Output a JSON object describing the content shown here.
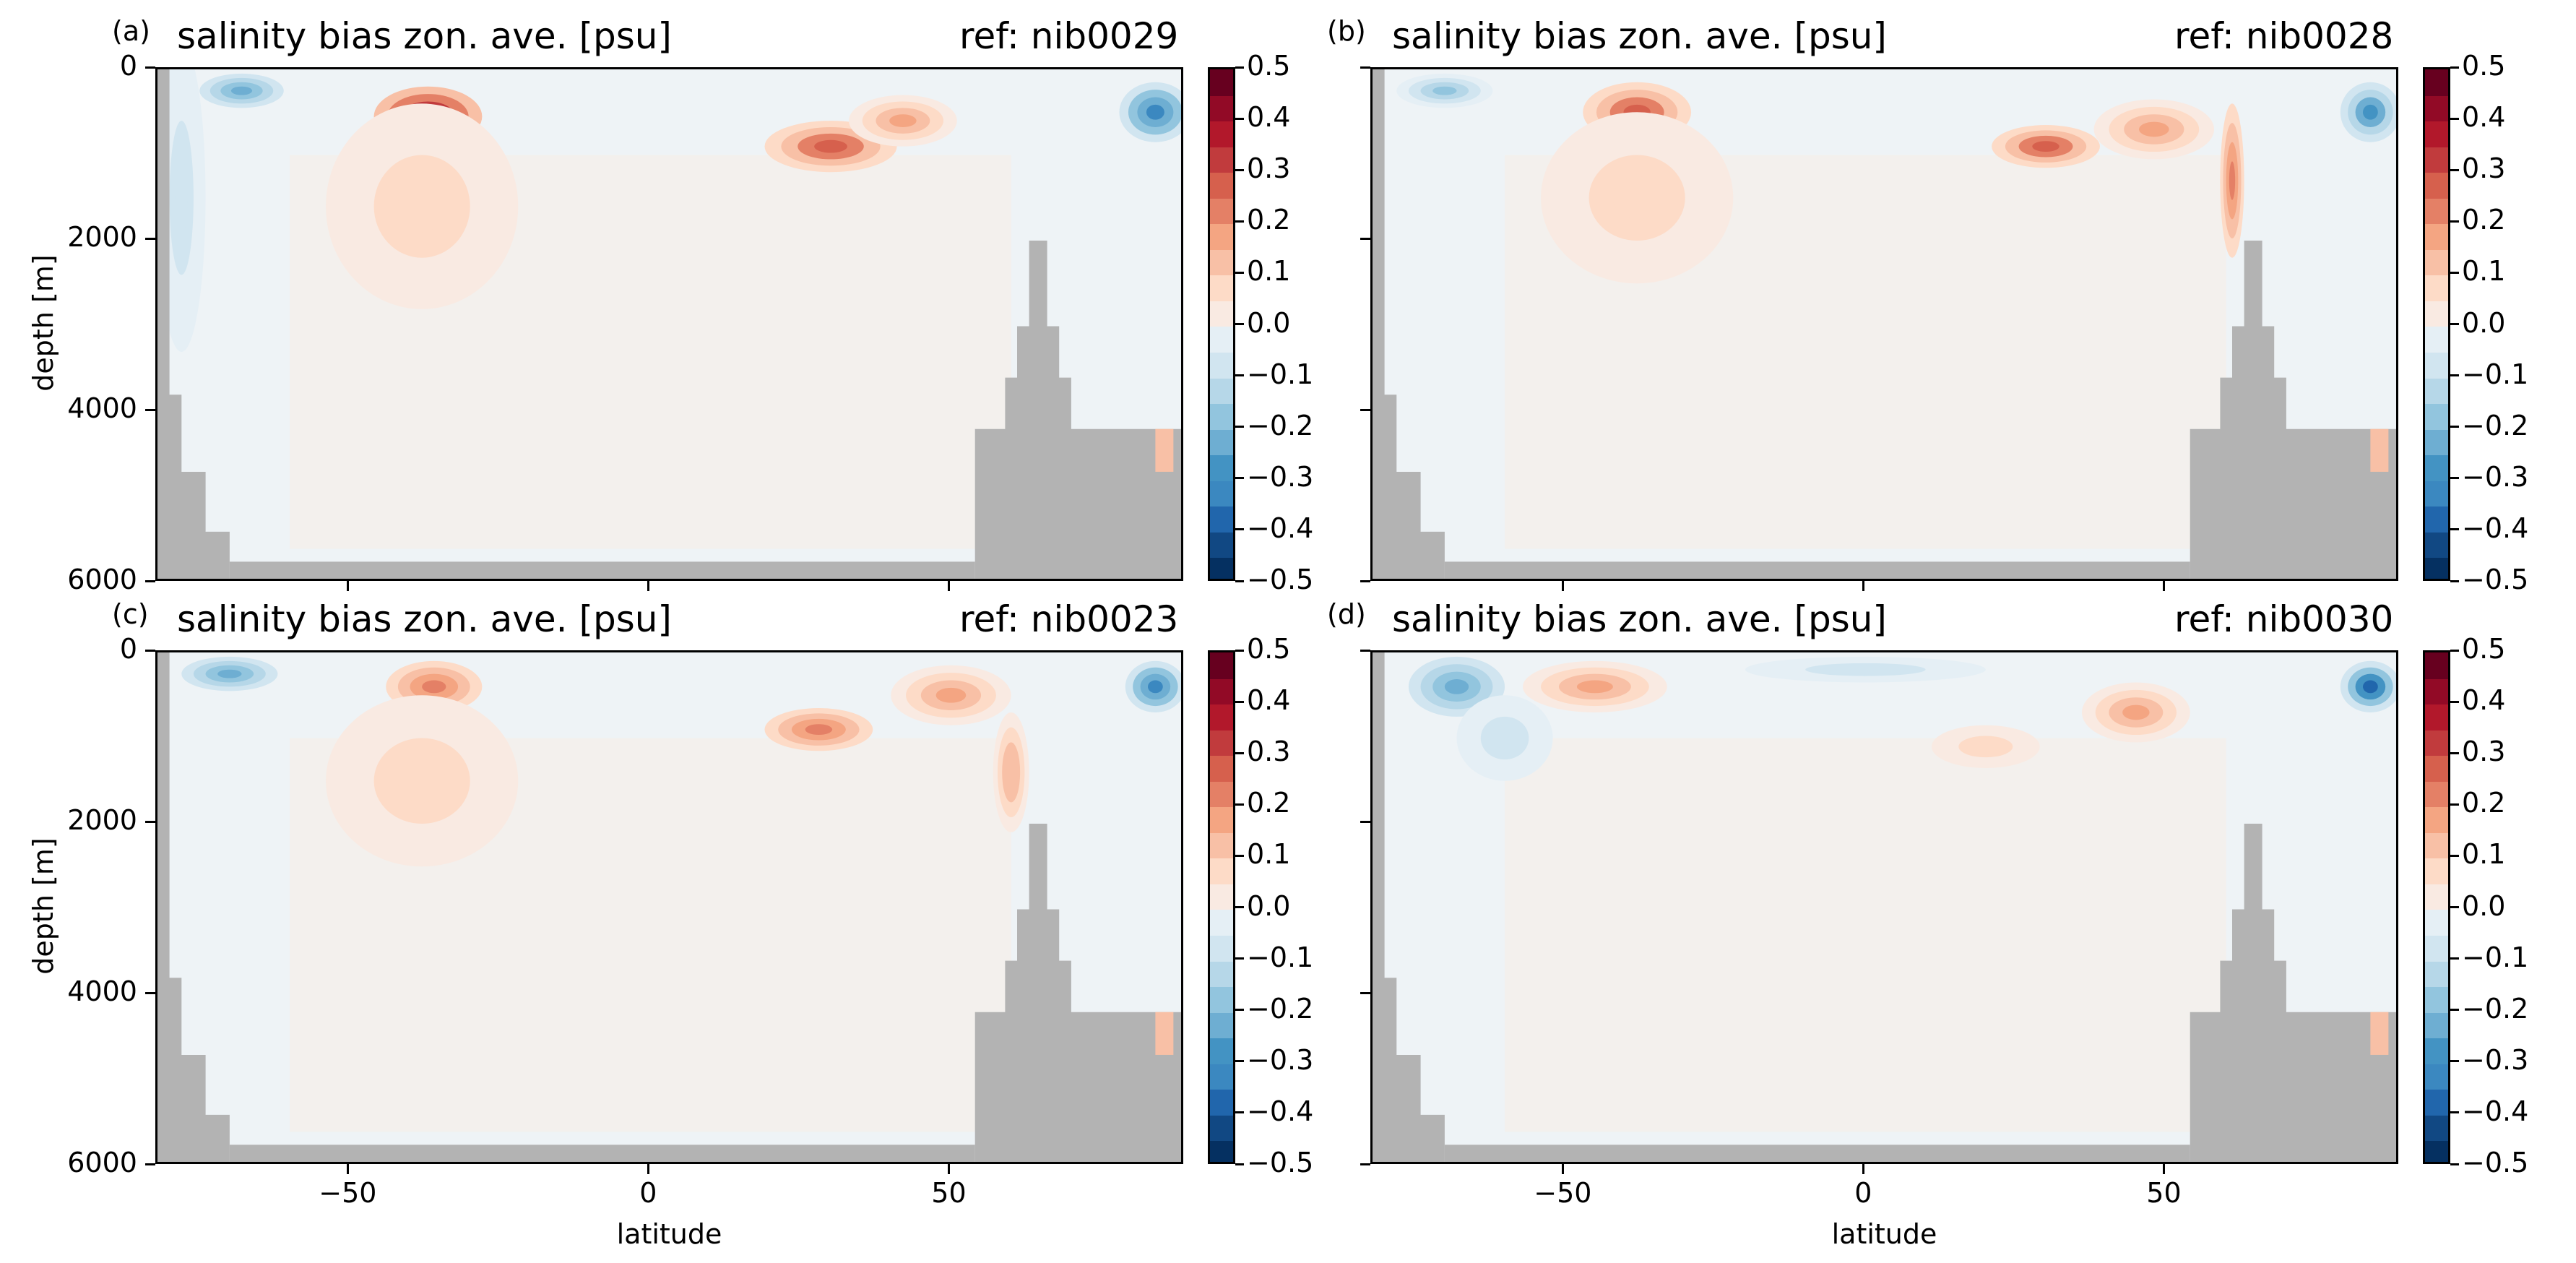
{
  "figure": {
    "xlabel": "latitude",
    "ylabel": "depth [m]"
  },
  "chart_data": [
    {
      "type": "heatmap",
      "panel_label": "(a)",
      "title": "salinity bias zon. ave. [psu]",
      "reference": "ref: nib0029",
      "xlim": [
        -82,
        89
      ],
      "ylim": [
        6000,
        0
      ],
      "x_ticks": [
        -50,
        0,
        50
      ],
      "y_ticks": [
        0,
        2000,
        4000,
        6000
      ],
      "colorbar": {
        "levels": [
          -0.5,
          -0.45,
          -0.4,
          -0.35,
          -0.3,
          -0.25,
          -0.2,
          -0.15,
          -0.1,
          -0.05,
          0,
          0.05,
          0.1,
          0.15,
          0.2,
          0.25,
          0.3,
          0.35,
          0.4,
          0.45,
          0.5
        ],
        "tick_labels": [
          "0.5",
          "0.4",
          "0.3",
          "0.2",
          "0.1",
          "0.0",
          "−0.1",
          "−0.2",
          "−0.3",
          "−0.4",
          "−0.5"
        ]
      },
      "features": [
        {
          "lat": -37,
          "depth": 550,
          "value": 0.45,
          "dlat": 9,
          "ddepth": 350
        },
        {
          "lat": 30,
          "depth": 900,
          "value": 0.3,
          "dlat": 11,
          "ddepth": 300
        },
        {
          "lat": 42,
          "depth": 600,
          "value": 0.2,
          "dlat": 9,
          "ddepth": 300
        },
        {
          "lat": -38,
          "depth": 1600,
          "value": 0.1,
          "dlat": 16,
          "ddepth": 1200
        },
        {
          "lat": -68,
          "depth": 250,
          "value": -0.25,
          "dlat": 7,
          "ddepth": 200
        },
        {
          "lat": 84,
          "depth": 500,
          "value": -0.35,
          "dlat": 6,
          "ddepth": 350
        },
        {
          "lat": -78,
          "depth": 1500,
          "value": -0.08,
          "dlat": 4,
          "ddepth": 1800
        }
      ]
    },
    {
      "type": "heatmap",
      "panel_label": "(b)",
      "title": "salinity bias zon. ave. [psu]",
      "reference": "ref: nib0028",
      "xlim": [
        -82,
        89
      ],
      "ylim": [
        6000,
        0
      ],
      "x_ticks": [
        -50,
        0,
        50
      ],
      "y_ticks": [
        0,
        2000,
        4000,
        6000
      ],
      "colorbar": {
        "levels": [
          -0.5,
          -0.45,
          -0.4,
          -0.35,
          -0.3,
          -0.25,
          -0.2,
          -0.15,
          -0.1,
          -0.05,
          0,
          0.05,
          0.1,
          0.15,
          0.2,
          0.25,
          0.3,
          0.35,
          0.4,
          0.45,
          0.5
        ],
        "tick_labels": [
          "0.5",
          "0.4",
          "0.3",
          "0.2",
          "0.1",
          "0.0",
          "−0.1",
          "−0.2",
          "−0.3",
          "−0.4",
          "−0.5"
        ]
      },
      "features": [
        {
          "lat": -38,
          "depth": 500,
          "value": 0.3,
          "dlat": 9,
          "ddepth": 350
        },
        {
          "lat": 30,
          "depth": 900,
          "value": 0.3,
          "dlat": 9,
          "ddepth": 250
        },
        {
          "lat": 48,
          "depth": 700,
          "value": 0.2,
          "dlat": 10,
          "ddepth": 350
        },
        {
          "lat": 61,
          "depth": 1300,
          "value": 0.25,
          "dlat": 2,
          "ddepth": 900
        },
        {
          "lat": -38,
          "depth": 1500,
          "value": 0.1,
          "dlat": 16,
          "ddepth": 1000
        },
        {
          "lat": -70,
          "depth": 250,
          "value": -0.2,
          "dlat": 8,
          "ddepth": 200
        },
        {
          "lat": 84,
          "depth": 500,
          "value": -0.3,
          "dlat": 5,
          "ddepth": 350
        }
      ]
    },
    {
      "type": "heatmap",
      "panel_label": "(c)",
      "title": "salinity bias zon. ave. [psu]",
      "reference": "ref: nib0023",
      "xlim": [
        -82,
        89
      ],
      "ylim": [
        6000,
        0
      ],
      "x_ticks": [
        -50,
        0,
        50
      ],
      "y_ticks": [
        0,
        2000,
        4000,
        6000
      ],
      "colorbar": {
        "levels": [
          -0.5,
          -0.45,
          -0.4,
          -0.35,
          -0.3,
          -0.25,
          -0.2,
          -0.15,
          -0.1,
          -0.05,
          0,
          0.05,
          0.1,
          0.15,
          0.2,
          0.25,
          0.3,
          0.35,
          0.4,
          0.45,
          0.5
        ],
        "tick_labels": [
          "0.5",
          "0.4",
          "0.3",
          "0.2",
          "0.1",
          "0.0",
          "−0.1",
          "−0.2",
          "−0.3",
          "−0.4",
          "−0.5"
        ]
      },
      "features": [
        {
          "lat": -36,
          "depth": 400,
          "value": 0.25,
          "dlat": 8,
          "ddepth": 300
        },
        {
          "lat": 28,
          "depth": 900,
          "value": 0.25,
          "dlat": 9,
          "ddepth": 250
        },
        {
          "lat": 50,
          "depth": 500,
          "value": 0.2,
          "dlat": 10,
          "ddepth": 350
        },
        {
          "lat": 60,
          "depth": 1400,
          "value": 0.15,
          "dlat": 3,
          "ddepth": 700
        },
        {
          "lat": -38,
          "depth": 1500,
          "value": 0.08,
          "dlat": 16,
          "ddepth": 1000
        },
        {
          "lat": -70,
          "depth": 250,
          "value": -0.25,
          "dlat": 8,
          "ddepth": 200
        },
        {
          "lat": 84,
          "depth": 400,
          "value": -0.35,
          "dlat": 5,
          "ddepth": 300
        }
      ]
    },
    {
      "type": "heatmap",
      "panel_label": "(d)",
      "title": "salinity bias zon. ave. [psu]",
      "reference": "ref: nib0030",
      "xlim": [
        -82,
        89
      ],
      "ylim": [
        6000,
        0
      ],
      "x_ticks": [
        -50,
        0,
        50
      ],
      "y_ticks": [
        0,
        2000,
        4000,
        6000
      ],
      "colorbar": {
        "levels": [
          -0.5,
          -0.45,
          -0.4,
          -0.35,
          -0.3,
          -0.25,
          -0.2,
          -0.15,
          -0.1,
          -0.05,
          0,
          0.05,
          0.1,
          0.15,
          0.2,
          0.25,
          0.3,
          0.35,
          0.4,
          0.45,
          0.5
        ],
        "tick_labels": [
          "0.5",
          "0.4",
          "0.3",
          "0.2",
          "0.1",
          "0.0",
          "−0.1",
          "−0.2",
          "−0.3",
          "−0.4",
          "−0.5"
        ]
      },
      "features": [
        {
          "lat": -45,
          "depth": 400,
          "value": 0.2,
          "dlat": 12,
          "ddepth": 300
        },
        {
          "lat": 45,
          "depth": 700,
          "value": 0.2,
          "dlat": 9,
          "ddepth": 350
        },
        {
          "lat": 20,
          "depth": 1100,
          "value": 0.1,
          "dlat": 9,
          "ddepth": 250
        },
        {
          "lat": -68,
          "depth": 400,
          "value": -0.25,
          "dlat": 8,
          "ddepth": 350
        },
        {
          "lat": -60,
          "depth": 1000,
          "value": -0.1,
          "dlat": 8,
          "ddepth": 500
        },
        {
          "lat": 84,
          "depth": 400,
          "value": -0.4,
          "dlat": 5,
          "ddepth": 300
        },
        {
          "lat": 0,
          "depth": 200,
          "value": -0.1,
          "dlat": 20,
          "ddepth": 150
        }
      ]
    }
  ]
}
